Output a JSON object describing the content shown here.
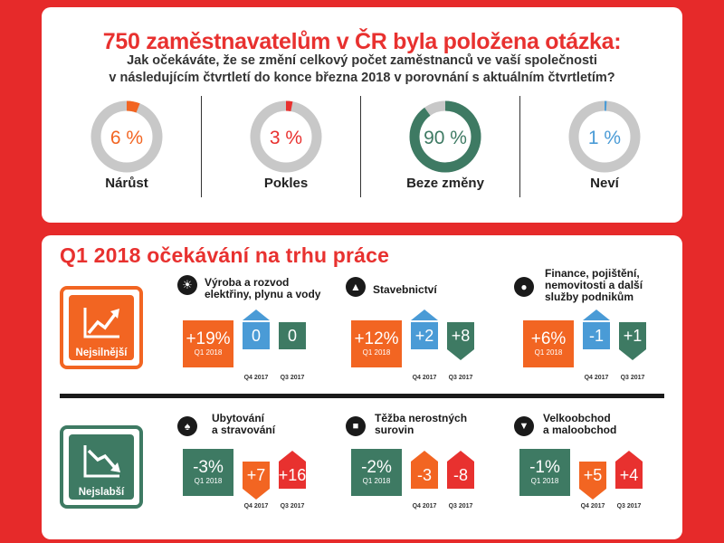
{
  "survey": {
    "title": "750 zaměstnavatelům v ČR byla položena otázka:",
    "question_line1": "Jak očekáváte, že se změní celkový počet zaměstnanců ve vaší společnosti",
    "question_line2": "v následujícím čtvrtletí do konce března 2018 v porovnání s aktuálním čtvrtletím?",
    "answers": [
      {
        "value": "6 %",
        "label": "Nárůst",
        "percent": 6,
        "color": "#f26522"
      },
      {
        "value": "3 %",
        "label": "Pokles",
        "percent": 3,
        "color": "#e8312f"
      },
      {
        "value": "90 %",
        "label": "Beze změny",
        "percent": 90,
        "color": "#3e7a63"
      },
      {
        "value": "1 %",
        "label": "Neví",
        "percent": 1,
        "color": "#4a9bd6"
      }
    ]
  },
  "outlook": {
    "title": "Q1 2018 očekávání na trhu práce",
    "strongest_label": "Nejsilnější",
    "weakest_label": "Nejslabší",
    "q4_caption": "Q4 2017",
    "q3_caption": "Q3 2017",
    "main_caption": "Q1 2018",
    "strongest": [
      {
        "name": [
          "Výroba a rozvod",
          "elektřiny, plynu a vody"
        ],
        "icon": "lightbulb-icon",
        "q1": "+19%",
        "q4": "0",
        "q3": "0"
      },
      {
        "name": [
          "Stavebnictví"
        ],
        "icon": "traffic-cone-icon",
        "q1": "+12%",
        "q4": "+2",
        "q3": "+8"
      },
      {
        "name": [
          "Finance, pojištění,",
          "nemovitosti a další",
          "služby podnikům"
        ],
        "icon": "piggy-bank-icon",
        "q1": "+6%",
        "q4": "-1",
        "q3": "+1"
      }
    ],
    "weakest": [
      {
        "name": [
          "Ubytování",
          "a stravování"
        ],
        "icon": "bottle-icon",
        "q1": "-3%",
        "q4": "+7",
        "q3": "+16"
      },
      {
        "name": [
          "Těžba nerostných",
          "surovin"
        ],
        "icon": "mining-truck-icon",
        "q1": "-2%",
        "q4": "-3",
        "q3": "-8"
      },
      {
        "name": [
          "Velkoobchod",
          "a maloobchod"
        ],
        "icon": "shopping-cart-icon",
        "q1": "-1%",
        "q4": "+5",
        "q3": "+4"
      }
    ],
    "colors": {
      "orange": "#f26522",
      "green": "#3e7a63",
      "blue": "#4a9bd6",
      "red": "#e8312f"
    }
  }
}
